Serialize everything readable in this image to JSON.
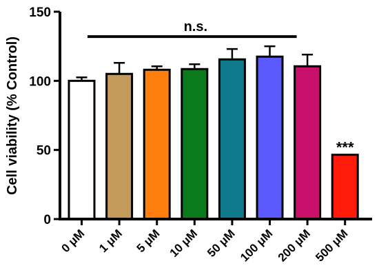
{
  "chart_data": {
    "type": "bar",
    "title": "",
    "xlabel": "",
    "ylabel": "Cell viability (% Control)",
    "ylim": [
      0,
      150
    ],
    "yticks": [
      0,
      50,
      100,
      150
    ],
    "grid": false,
    "categories": [
      "0 μM",
      "1 μM",
      "5 μM",
      "10 μM",
      "50 μM",
      "100 μM",
      "200 μM",
      "500 μM"
    ],
    "values": [
      100,
      105,
      108,
      108.5,
      115.5,
      117.5,
      110.5,
      46.5
    ],
    "errors": [
      2.5,
      8,
      2.5,
      3.5,
      7.5,
      7.5,
      8.5,
      0
    ],
    "bar_colors": [
      "#ffffff",
      "#c49a5a",
      "#ff7f0e",
      "#0b7a1c",
      "#0e7a8c",
      "#5a5aff",
      "#c8106a",
      "#ff1a0a"
    ],
    "annotations": [
      {
        "text": "n.s.",
        "type": "bracket",
        "from": "0 μM",
        "to": "200 μM",
        "y": 132
      },
      {
        "text": "***",
        "type": "label",
        "category": "500 μM",
        "y": 54
      }
    ]
  }
}
